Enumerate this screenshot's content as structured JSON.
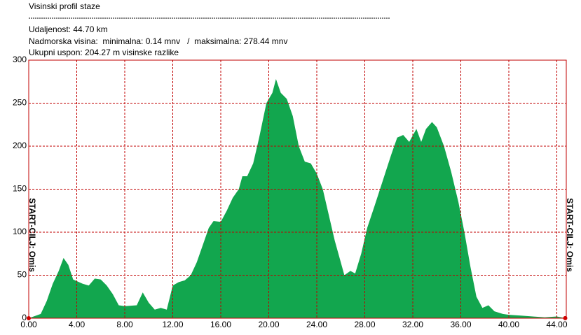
{
  "header": {
    "title": "Visinski profil staze",
    "distance": "Udaljenost: 44.70 km",
    "elevation": "Nadmorska visina:  minimalna: 0.14 mnv   /  maksimalna: 278.44 mnv",
    "ascent": "Ukupni uspon: 204.27 m visinske razlike"
  },
  "chart_data": {
    "type": "area",
    "side_label": "START-CILJ: Omis",
    "color": "#12a64e",
    "grid": true,
    "x": [
      0,
      1,
      1.5,
      2,
      2.5,
      2.9,
      3.3,
      3.7,
      4.5,
      5,
      5.5,
      6,
      6.5,
      7,
      7.5,
      8,
      9,
      9.5,
      10,
      10.5,
      11,
      11.5,
      12,
      12.5,
      13,
      13.5,
      14,
      14.5,
      15,
      15.4,
      16,
      16.5,
      17,
      17.5,
      17.8,
      18.2,
      18.7,
      19.2,
      19.8,
      20.3,
      20.6,
      21,
      21.5,
      22,
      22.5,
      23,
      23.5,
      24,
      24.5,
      25,
      25.5,
      26,
      26.3,
      26.8,
      27.2,
      27.7,
      28.2,
      28.8,
      29.5,
      30.2,
      30.7,
      31.2,
      31.7,
      32.3,
      32.7,
      33.1,
      33.6,
      34,
      34.6,
      35.2,
      35.8,
      36.3,
      36.8,
      37.3,
      37.8,
      38.3,
      38.8,
      39.5,
      40,
      41,
      42,
      43,
      44,
      44.7
    ],
    "values": [
      0,
      5,
      20,
      40,
      55,
      70,
      62,
      45,
      40,
      38,
      46,
      45,
      38,
      28,
      15,
      14,
      15,
      30,
      18,
      10,
      12,
      10,
      38,
      42,
      44,
      50,
      65,
      85,
      105,
      113,
      112,
      125,
      140,
      150,
      165,
      165,
      180,
      210,
      250,
      262,
      278,
      262,
      255,
      235,
      200,
      182,
      180,
      168,
      150,
      120,
      90,
      65,
      50,
      55,
      52,
      75,
      105,
      130,
      160,
      190,
      210,
      213,
      205,
      220,
      205,
      220,
      228,
      222,
      200,
      170,
      135,
      100,
      60,
      25,
      12,
      15,
      8,
      5,
      4,
      3,
      2,
      1,
      2,
      0.14
    ],
    "xlim": [
      0,
      44.7
    ],
    "ylim": [
      0,
      300
    ],
    "xticks": [
      {
        "value": 0,
        "label": "0.00"
      },
      {
        "value": 4,
        "label": "4.00"
      },
      {
        "value": 8,
        "label": "8.00"
      },
      {
        "value": 12,
        "label": "12.00"
      },
      {
        "value": 16,
        "label": "16.00"
      },
      {
        "value": 20,
        "label": "20.00"
      },
      {
        "value": 24,
        "label": "24.00"
      },
      {
        "value": 28,
        "label": "28.00"
      },
      {
        "value": 32,
        "label": "32.00"
      },
      {
        "value": 36,
        "label": "36.00"
      },
      {
        "value": 40,
        "label": "40.00"
      },
      {
        "value": 44,
        "label": "44.00"
      }
    ],
    "yticks": [
      0,
      50,
      100,
      150,
      200,
      250,
      300
    ]
  }
}
